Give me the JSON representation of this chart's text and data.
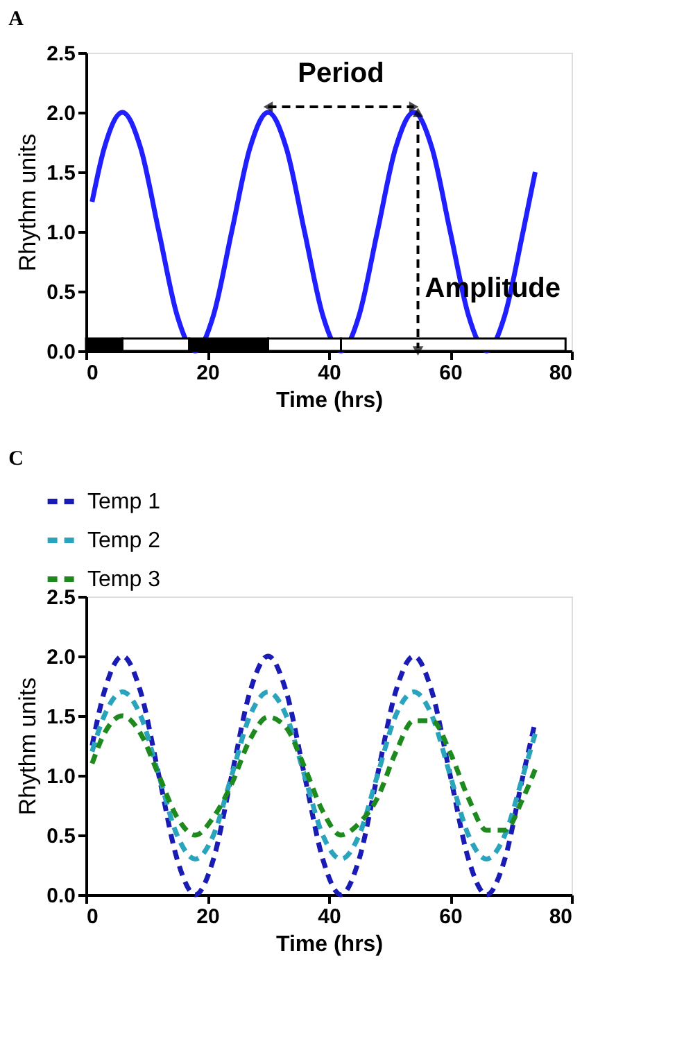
{
  "chart_data": [
    {
      "type": "line",
      "title": "A",
      "xlabel": "Time (hrs)",
      "ylabel": "Rhythm units",
      "x": [
        1,
        3,
        6,
        9,
        12,
        15,
        18,
        21,
        24,
        27,
        30,
        33,
        36,
        39,
        42,
        45,
        48,
        51,
        54,
        57,
        60,
        63,
        66,
        69,
        72,
        74
      ],
      "series": [
        {
          "color": "#1f1fff",
          "values": [
            1.25,
            1.7,
            2.0,
            1.7,
            1.0,
            0.3,
            0.0,
            0.3,
            1.0,
            1.7,
            2.0,
            1.7,
            1.0,
            0.3,
            0.0,
            0.3,
            1.0,
            1.7,
            2.0,
            1.7,
            1.0,
            0.3,
            0.0,
            0.3,
            1.0,
            1.5
          ]
        }
      ],
      "xlim": [
        0,
        80
      ],
      "xticks": [
        0,
        20,
        40,
        60,
        80
      ],
      "ylim": [
        0,
        2.5
      ],
      "yticks": [
        {
          "value": 0,
          "label": "0.0"
        },
        0.5,
        {
          "value": 1,
          "label": "1.0"
        },
        1.5,
        {
          "value": 2,
          "label": "2.0"
        },
        2.5
      ],
      "bands": [
        {
          "axis": "x",
          "from": 0,
          "to": 6,
          "color": "#000000"
        },
        {
          "axis": "x",
          "from": 6,
          "to": 17,
          "color": "#ffffff"
        },
        {
          "axis": "x",
          "from": 17,
          "to": 30,
          "color": "#000000"
        },
        {
          "axis": "x",
          "from": 30,
          "to": 42,
          "color": "#ffffff"
        },
        {
          "axis": "x",
          "from": 42,
          "to": 79,
          "color": "#ffffff"
        }
      ],
      "annotations": [
        "Period",
        "Amplitude"
      ],
      "grid": false,
      "legend": false,
      "line_style": "solid",
      "marker": "none"
    },
    {
      "type": "line",
      "title": "C",
      "xlabel": "Time (hrs)",
      "ylabel": "Rhythm units",
      "x": [
        1,
        3,
        6,
        9,
        12,
        15,
        18,
        21,
        24,
        27,
        30,
        33,
        36,
        39,
        42,
        45,
        48,
        51,
        54,
        57,
        60,
        63,
        66,
        69,
        72,
        74
      ],
      "series": [
        {
          "name": "Temp 1",
          "color": "#1a1ab4",
          "values": [
            1.25,
            1.7,
            2.0,
            1.7,
            1.0,
            0.3,
            0.0,
            0.3,
            1.0,
            1.7,
            2.0,
            1.7,
            1.0,
            0.3,
            0.0,
            0.3,
            1.0,
            1.7,
            2.0,
            1.7,
            1.0,
            0.3,
            0.0,
            0.3,
            1.0,
            1.45
          ]
        },
        {
          "name": "Temp 2",
          "color": "#2aa4bc",
          "values": [
            1.2,
            1.5,
            1.7,
            1.5,
            1.0,
            0.5,
            0.3,
            0.5,
            1.0,
            1.5,
            1.7,
            1.5,
            1.0,
            0.5,
            0.3,
            0.5,
            1.0,
            1.5,
            1.7,
            1.5,
            1.0,
            0.5,
            0.3,
            0.5,
            1.0,
            1.35
          ]
        },
        {
          "name": "Temp 3",
          "color": "#1e8a1e",
          "values": [
            1.1,
            1.35,
            1.5,
            1.35,
            1.0,
            0.65,
            0.5,
            0.65,
            0.93,
            1.3,
            1.49,
            1.4,
            1.07,
            0.7,
            0.5,
            0.6,
            0.81,
            1.19,
            1.46,
            1.46,
            1.19,
            0.81,
            0.54,
            0.54,
            0.81,
            1.05
          ]
        }
      ],
      "xlim": [
        0,
        80
      ],
      "xticks": [
        0,
        20,
        40,
        60,
        80
      ],
      "ylim": [
        0,
        2.5
      ],
      "yticks": [
        {
          "value": 0,
          "label": "0.0"
        },
        0.5,
        {
          "value": 1,
          "label": "1.0"
        },
        1.5,
        {
          "value": 2,
          "label": "2.0"
        },
        2.5
      ],
      "grid": false,
      "legend": "top left",
      "line_style": "dashed",
      "marker": "none"
    }
  ]
}
